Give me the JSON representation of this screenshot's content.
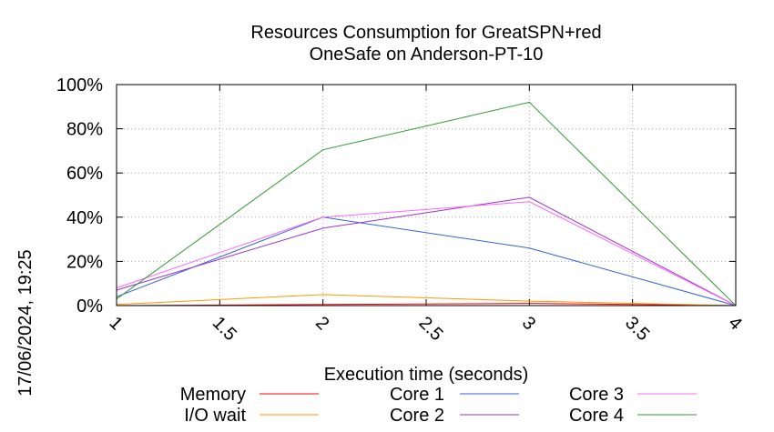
{
  "chart_data": {
    "type": "line",
    "title": "Resources Consumption for GreatSPN+red",
    "subtitle": "OneSafe on Anderson-PT-10",
    "xlabel": "Execution time (seconds)",
    "ylabel": "",
    "side_label": "17/06/2024, 19:25",
    "xlim": [
      1,
      4
    ],
    "ylim": [
      0,
      100
    ],
    "x_ticks": [
      "1",
      "1.5",
      "2",
      "2.5",
      "3",
      "3.5",
      "4"
    ],
    "y_ticks": [
      "0%",
      "20%",
      "40%",
      "60%",
      "80%",
      "100%"
    ],
    "grid": true,
    "legend_position": "bottom",
    "x": [
      1,
      2,
      3,
      4
    ],
    "series": [
      {
        "name": "Memory",
        "color": "#ff0000",
        "values": [
          0,
          0.5,
          1,
          0
        ]
      },
      {
        "name": "I/O wait",
        "color": "#ff9900",
        "values": [
          0.5,
          5,
          2,
          0
        ]
      },
      {
        "name": "Core 1",
        "color": "#3366cc",
        "values": [
          4,
          40,
          26,
          0
        ]
      },
      {
        "name": "Core 2",
        "color": "#9933cc",
        "values": [
          7,
          35,
          49,
          0
        ]
      },
      {
        "name": "Core 3",
        "color": "#ff66ff",
        "values": [
          8,
          40,
          47,
          0
        ]
      },
      {
        "name": "Core 4",
        "color": "#339933",
        "values": [
          3,
          70.5,
          92,
          0
        ]
      }
    ]
  }
}
